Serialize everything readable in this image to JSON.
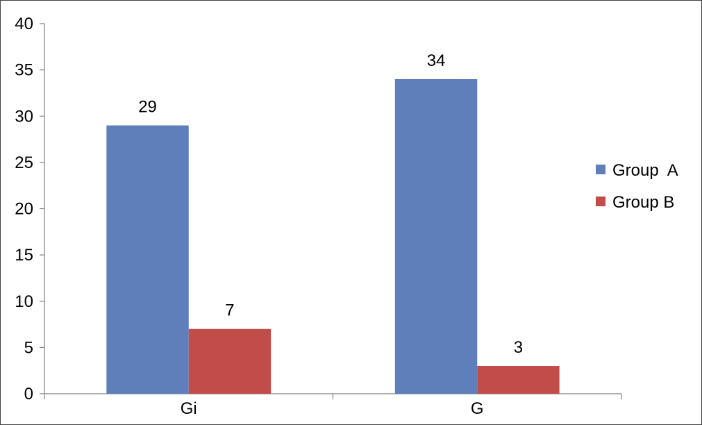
{
  "chart_data": {
    "type": "bar",
    "categories": [
      "Gi",
      "G"
    ],
    "series": [
      {
        "name": "Group  A",
        "values": [
          29,
          34
        ],
        "color": "#5f7fba"
      },
      {
        "name": "Group B",
        "values": [
          7,
          3
        ],
        "color": "#c04d4a"
      }
    ],
    "y_ticks": [
      "0",
      "5",
      "10",
      "15",
      "20",
      "25",
      "30",
      "35",
      "40"
    ],
    "ylim": [
      0,
      40
    ],
    "grid": false,
    "legend_position": "right",
    "show_data_labels": true
  },
  "colors": {
    "axis": "#808080",
    "border": "#404040"
  }
}
